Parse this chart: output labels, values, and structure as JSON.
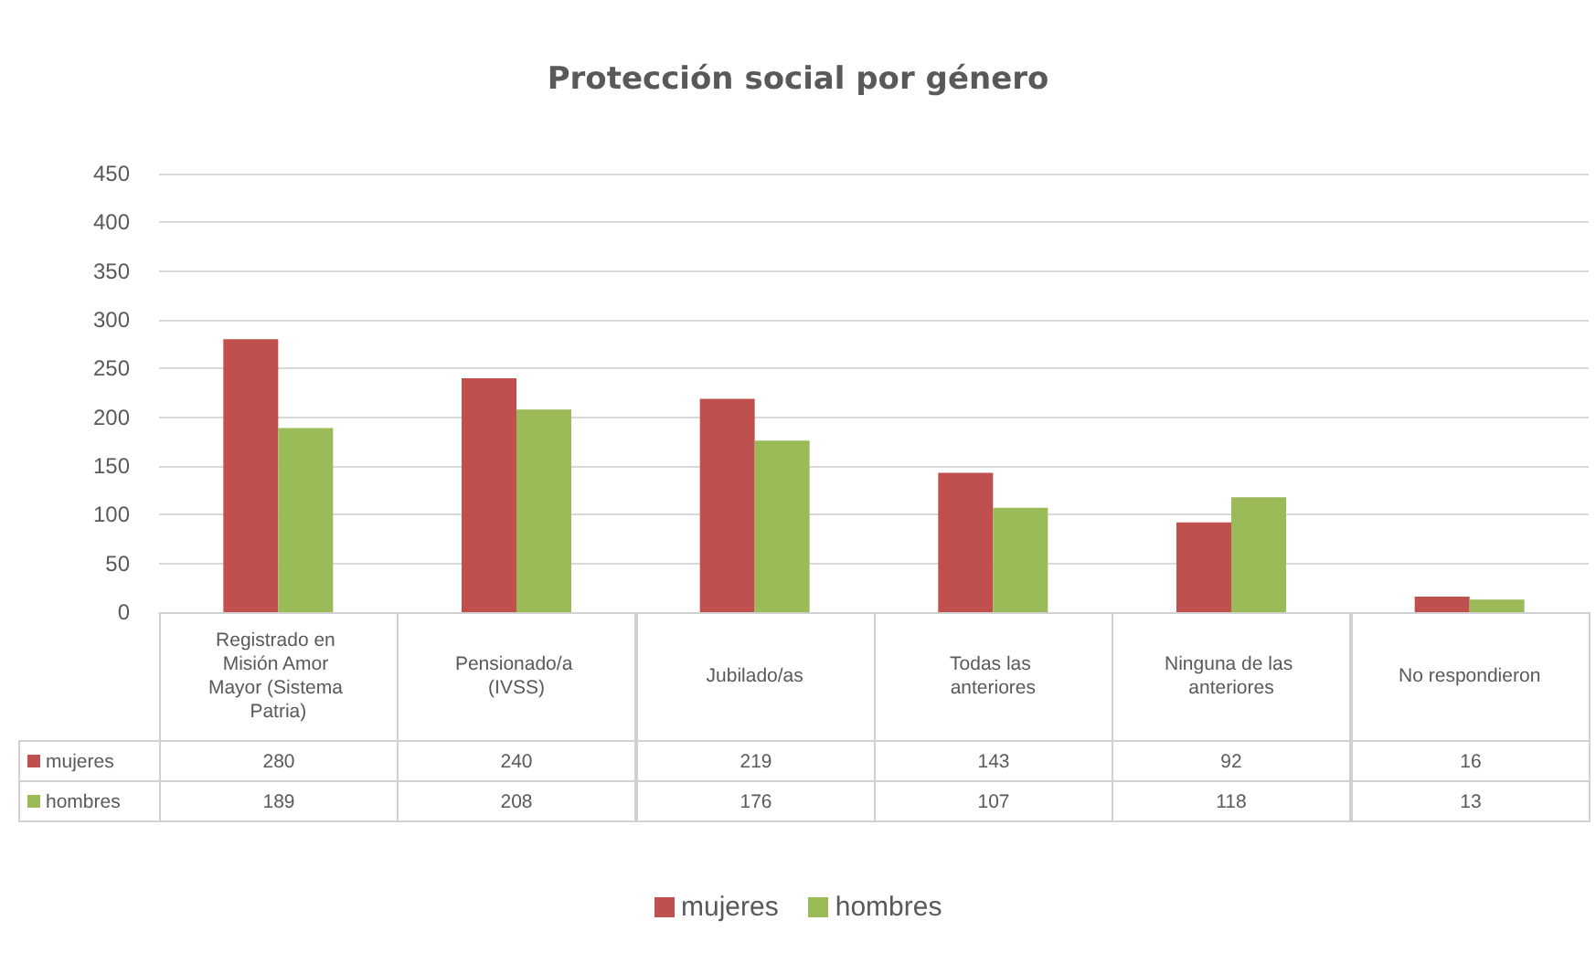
{
  "chart_data": {
    "type": "bar",
    "title": "Protección social por género",
    "categories": [
      "Registrado en Misión Amor Mayor (Sistema Patria)",
      "Pensionado/a (IVSS)",
      "Jubilado/as",
      "Todas las anteriores",
      "Ninguna de las anteriores",
      "No respondieron"
    ],
    "series": [
      {
        "name": "mujeres",
        "color": "#c0504d",
        "values": [
          280,
          240,
          219,
          143,
          92,
          16
        ]
      },
      {
        "name": "hombres",
        "color": "#9bbb59",
        "values": [
          189,
          208,
          176,
          107,
          118,
          13
        ]
      }
    ],
    "ylim": [
      0,
      450
    ],
    "yticks": [
      0,
      50,
      100,
      150,
      200,
      250,
      300,
      350,
      400,
      450
    ],
    "grid": "y",
    "legend": "bottom",
    "data_labels": true
  }
}
